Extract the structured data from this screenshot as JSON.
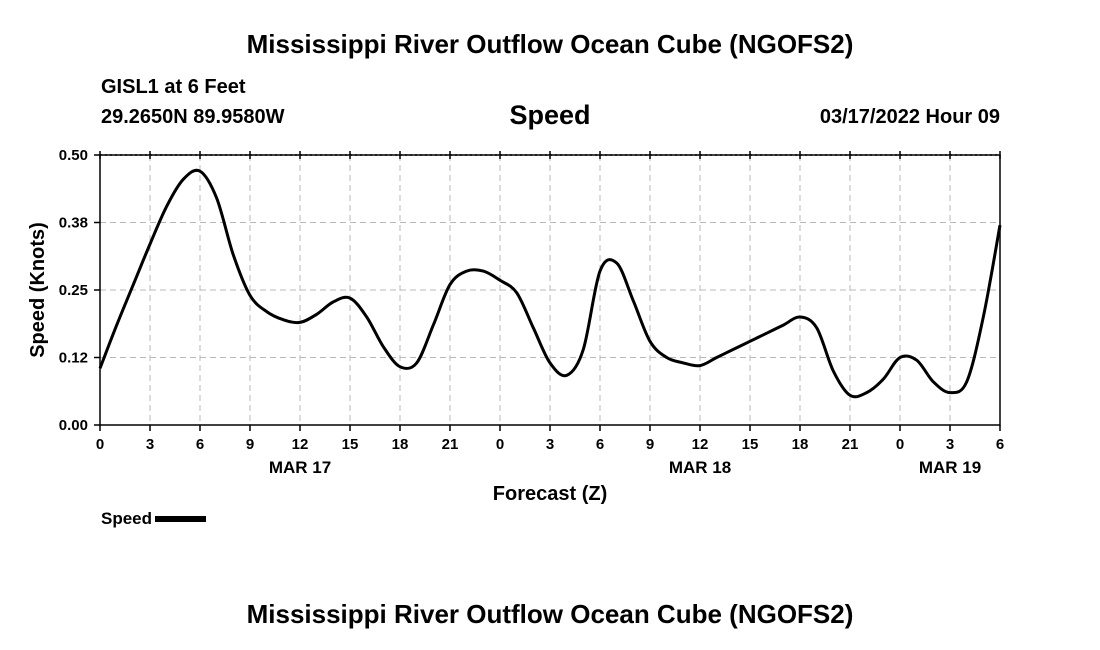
{
  "header": {
    "title": "Mississippi River Outflow Ocean Cube (NGOFS2)",
    "station": "GISL1 at 6 Feet",
    "coords": "29.2650N  89.9580W",
    "datetime": "03/17/2022 Hour 09"
  },
  "footer": {
    "title": "Mississippi River Outflow Ocean Cube (NGOFS2)"
  },
  "legend": {
    "label": "Speed",
    "color": "#000000"
  },
  "chart_data": {
    "type": "line",
    "title": "Speed",
    "xlabel": "Forecast (Z)",
    "ylabel": "Speed (Knots)",
    "xlim": [
      0,
      54
    ],
    "ylim": [
      0,
      0.5
    ],
    "grid": true,
    "x_ticks": [
      {
        "x": 0,
        "label": "0"
      },
      {
        "x": 3,
        "label": "3"
      },
      {
        "x": 6,
        "label": "6"
      },
      {
        "x": 9,
        "label": "9"
      },
      {
        "x": 12,
        "label": "12"
      },
      {
        "x": 15,
        "label": "15"
      },
      {
        "x": 18,
        "label": "18"
      },
      {
        "x": 21,
        "label": "21"
      },
      {
        "x": 24,
        "label": "0"
      },
      {
        "x": 27,
        "label": "3"
      },
      {
        "x": 30,
        "label": "6"
      },
      {
        "x": 33,
        "label": "9"
      },
      {
        "x": 36,
        "label": "12"
      },
      {
        "x": 39,
        "label": "15"
      },
      {
        "x": 42,
        "label": "18"
      },
      {
        "x": 45,
        "label": "21"
      },
      {
        "x": 48,
        "label": "0"
      },
      {
        "x": 51,
        "label": "3"
      },
      {
        "x": 54,
        "label": "6"
      }
    ],
    "y_ticks": [
      {
        "y": 0.0,
        "label": "0.00"
      },
      {
        "y": 0.125,
        "label": "0.12"
      },
      {
        "y": 0.25,
        "label": "0.25"
      },
      {
        "y": 0.375,
        "label": "0.38"
      },
      {
        "y": 0.5,
        "label": "0.50"
      }
    ],
    "date_labels": [
      {
        "x": 12,
        "label": "MAR 17"
      },
      {
        "x": 36,
        "label": "MAR 18"
      },
      {
        "x": 51,
        "label": "MAR 19"
      }
    ],
    "series": [
      {
        "name": "Speed",
        "color": "#000000",
        "x": [
          0,
          1,
          2,
          3,
          4,
          5,
          6,
          7,
          8,
          9,
          10,
          11,
          12,
          13,
          14,
          15,
          16,
          17,
          18,
          19,
          20,
          21,
          22,
          23,
          24,
          25,
          26,
          27,
          28,
          29,
          30,
          31,
          32,
          33,
          34,
          35,
          36,
          37,
          38,
          39,
          40,
          41,
          42,
          43,
          44,
          45,
          46,
          47,
          48,
          49,
          50,
          51,
          52,
          53,
          54
        ],
        "values": [
          0.105,
          0.185,
          0.26,
          0.335,
          0.405,
          0.455,
          0.47,
          0.42,
          0.315,
          0.24,
          0.21,
          0.195,
          0.19,
          0.205,
          0.228,
          0.235,
          0.2,
          0.145,
          0.108,
          0.115,
          0.185,
          0.26,
          0.285,
          0.285,
          0.268,
          0.245,
          0.18,
          0.115,
          0.092,
          0.14,
          0.285,
          0.3,
          0.23,
          0.155,
          0.125,
          0.115,
          0.11,
          0.125,
          0.14,
          0.155,
          0.17,
          0.185,
          0.2,
          0.18,
          0.1,
          0.055,
          0.06,
          0.085,
          0.125,
          0.12,
          0.08,
          0.06,
          0.08,
          0.2,
          0.37
        ]
      }
    ]
  }
}
